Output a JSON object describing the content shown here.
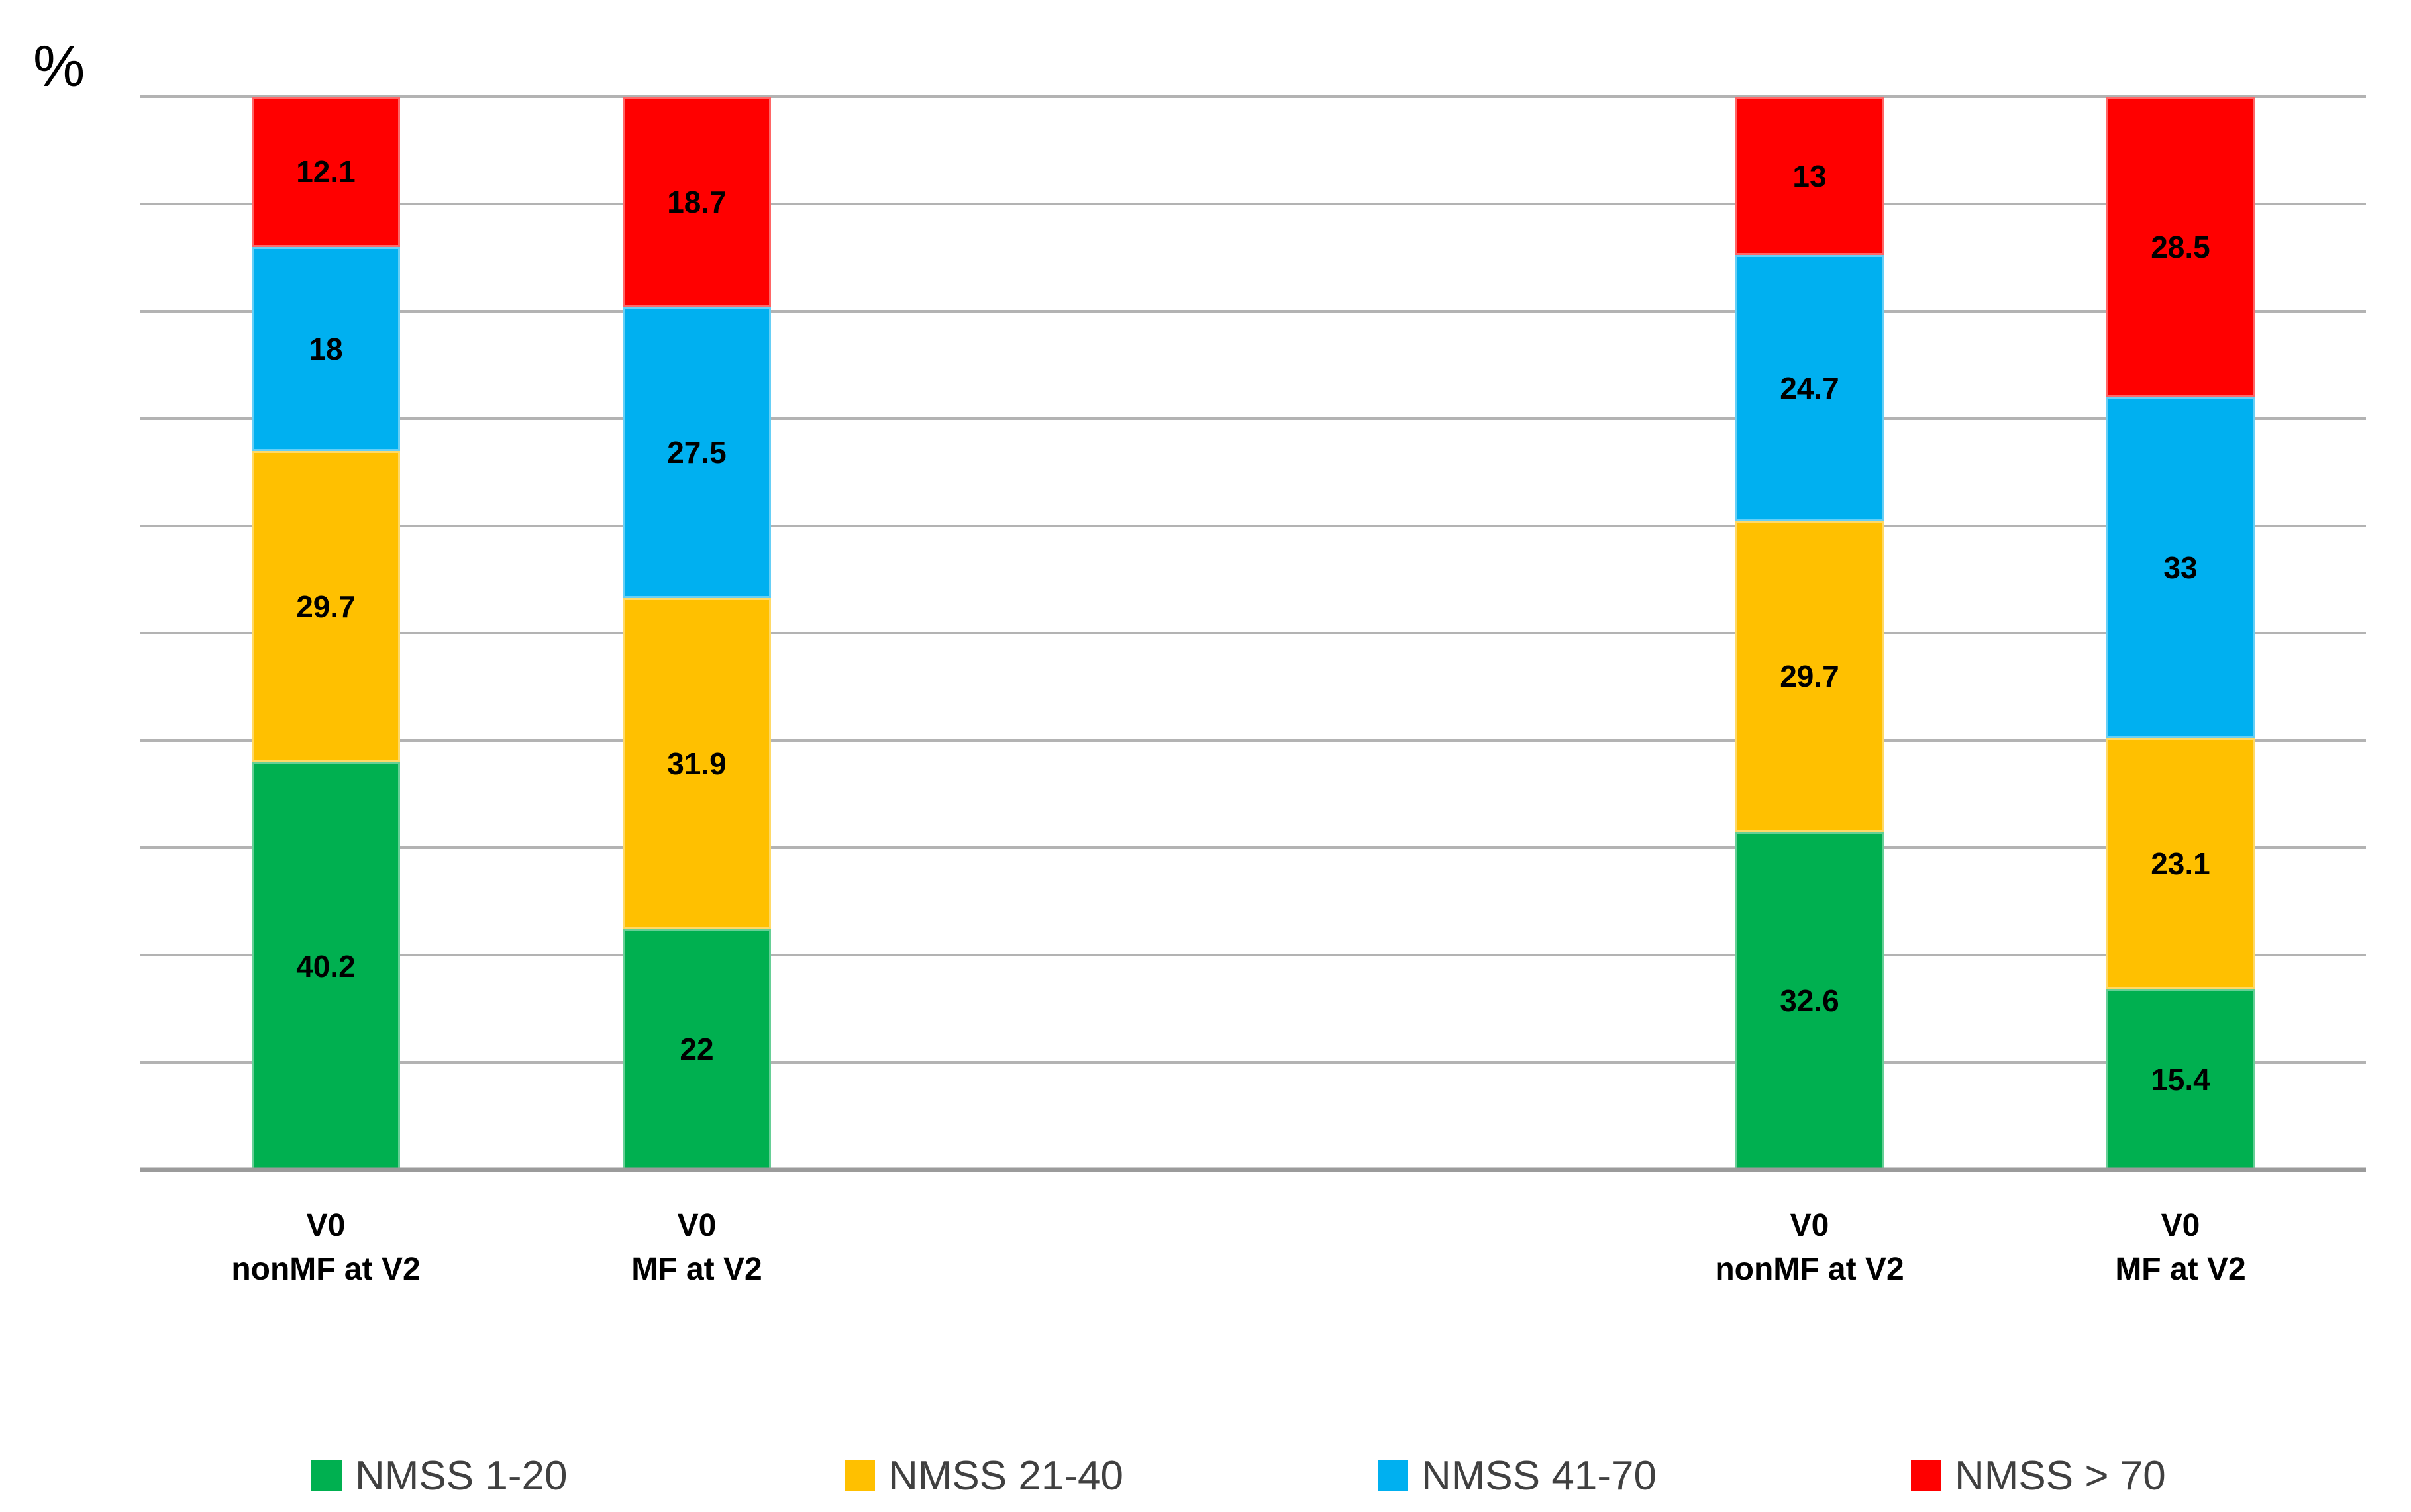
{
  "chart_data": {
    "type": "stacked-bar",
    "ylabel": "%",
    "ylim": [
      0,
      100
    ],
    "gridline_step": 10,
    "grid": true,
    "slot_count": 6,
    "categories": [
      {
        "slot": 0,
        "lines": [
          "V0",
          "nonMF at V2"
        ]
      },
      {
        "slot": 1,
        "lines": [
          "V0",
          "MF at V2"
        ]
      },
      {
        "slot": 4,
        "lines": [
          "V0",
          "nonMF at V2"
        ]
      },
      {
        "slot": 5,
        "lines": [
          "V0",
          "MF at V2"
        ]
      }
    ],
    "series": [
      {
        "name": "NMSS 1-20",
        "color": "#00B050",
        "values": [
          40.2,
          22,
          32.6,
          15.4
        ]
      },
      {
        "name": "NMSS 21-40",
        "color": "#FFC000",
        "values": [
          29.7,
          31.9,
          29.7,
          23.1
        ]
      },
      {
        "name": "NMSS 41-70",
        "color": "#00B0F0",
        "values": [
          18,
          27.5,
          24.7,
          33
        ]
      },
      {
        "name": "NMSS > 70",
        "color": "#FF0000",
        "values": [
          12.1,
          18.7,
          13,
          28.5
        ]
      }
    ],
    "legend": {
      "position": "bottom",
      "item_x": [
        470,
        1275,
        2080,
        2885
      ],
      "text_color": "#404040"
    },
    "colors": {
      "gridline": "#B3B3B3",
      "baseline": "#9B9B9B",
      "data_label": "#000000",
      "axis_label": "#000000"
    }
  }
}
